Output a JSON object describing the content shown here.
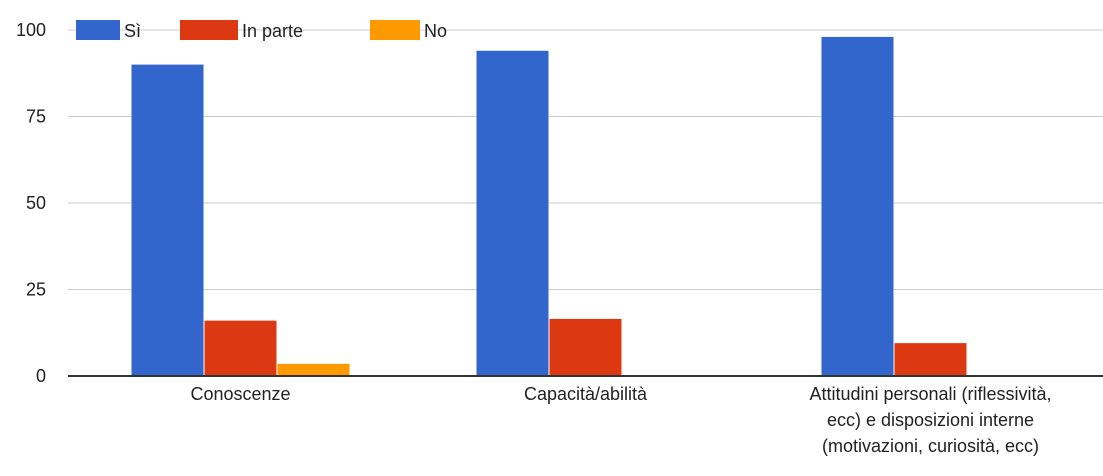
{
  "chart_data": {
    "type": "bar",
    "categories": [
      [
        "Conoscenze"
      ],
      [
        "Capacità/abilità"
      ],
      [
        "Attitudini personali (riflessività,",
        "ecc) e disposizioni interne",
        "(motivazioni, curiosità, ecc)"
      ]
    ],
    "series": [
      {
        "name": "Sì",
        "color": "#3366cc",
        "values": [
          90,
          94,
          98
        ]
      },
      {
        "name": "In parte",
        "color": "#dc3912",
        "values": [
          16,
          16.5,
          9.5
        ]
      },
      {
        "name": "No",
        "color": "#ff9900",
        "values": [
          3.5,
          0,
          0
        ]
      }
    ],
    "y_ticks": [
      0,
      25,
      50,
      75,
      100
    ],
    "ylim": [
      0,
      100
    ],
    "grid": true,
    "legend_position": "top-left"
  }
}
